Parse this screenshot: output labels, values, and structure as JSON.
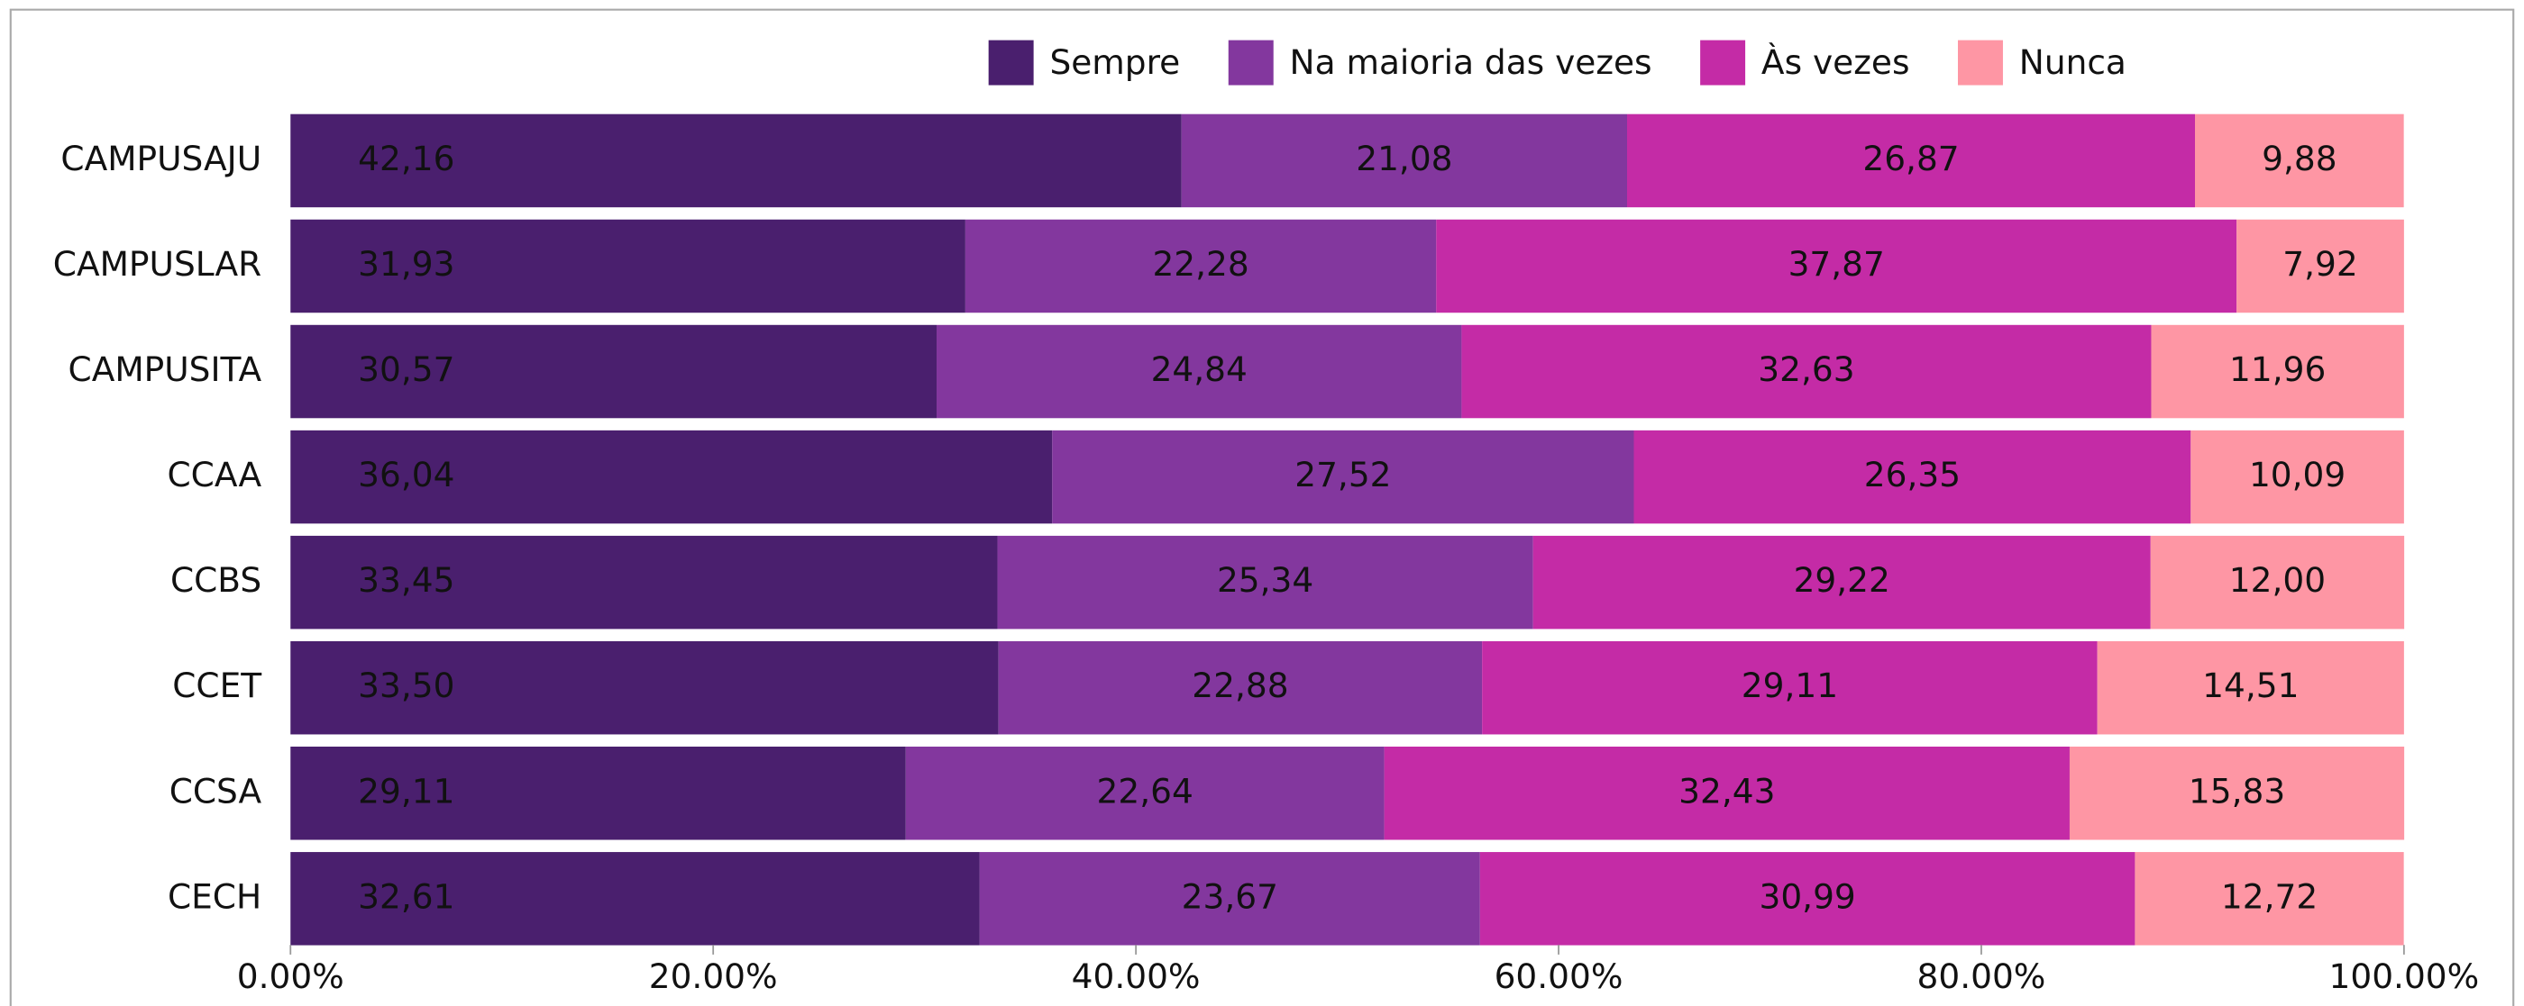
{
  "chart_data": {
    "type": "bar",
    "orientation": "horizontal",
    "stacked": true,
    "categories": [
      "CAMPUSAJU",
      "CAMPUSLAR",
      "CAMPUSITA",
      "CCAA",
      "CCBS",
      "CCET",
      "CCSA",
      "CECH"
    ],
    "series": [
      {
        "name": "Sempre",
        "color": "#4a1f6e",
        "values": [
          42.16,
          31.93,
          30.57,
          36.04,
          33.45,
          33.5,
          29.11,
          32.61
        ],
        "value_labels": [
          "42,16",
          "31,93",
          "30,57",
          "36,04",
          "33,45",
          "33,50",
          "29,11",
          "32,61"
        ]
      },
      {
        "name": "Na maioria das vezes",
        "color": "#83379e",
        "values": [
          21.08,
          22.28,
          24.84,
          27.52,
          25.34,
          22.88,
          22.64,
          23.67
        ],
        "value_labels": [
          "21,08",
          "22,28",
          "24,84",
          "27,52",
          "25,34",
          "22,88",
          "22,64",
          "23,67"
        ]
      },
      {
        "name": "Às vezes",
        "color": "#c42ba6",
        "values": [
          26.87,
          37.87,
          32.63,
          26.35,
          29.22,
          29.11,
          32.43,
          30.99
        ],
        "value_labels": [
          "26,87",
          "37,87",
          "32,63",
          "26,35",
          "29,22",
          "29,11",
          "32,43",
          "30,99"
        ]
      },
      {
        "name": "Nunca",
        "color": "#fe96a4",
        "values": [
          9.88,
          7.92,
          11.96,
          10.09,
          12.0,
          14.51,
          15.83,
          12.72
        ],
        "value_labels": [
          "9,88",
          "7,92",
          "11,96",
          "10,09",
          "12,00",
          "14,51",
          "15,83",
          "12,72"
        ]
      }
    ],
    "xlim": [
      0,
      100
    ],
    "xticks": [
      {
        "value": 0,
        "label": "0.00%"
      },
      {
        "value": 20,
        "label": "20.00%"
      },
      {
        "value": 40,
        "label": "40.00%"
      },
      {
        "value": 60,
        "label": "60.00%"
      },
      {
        "value": 80,
        "label": "80.00%"
      },
      {
        "value": 100,
        "label": "100.00%"
      }
    ],
    "legend": "top"
  }
}
